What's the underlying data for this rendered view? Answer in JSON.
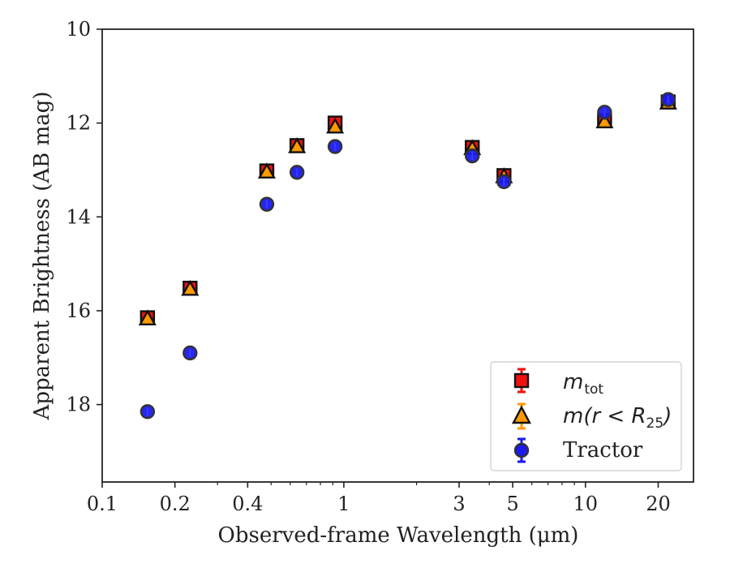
{
  "chart_data": {
    "type": "scatter",
    "xlabel": "Observed-frame Wavelength (μm)",
    "ylabel": "Apparent Brightness (AB mag)",
    "x_scale": "log",
    "xlim": [
      0.1,
      28
    ],
    "ylim": [
      19.65,
      10
    ],
    "y_inverted": true,
    "x_ticks": [
      {
        "value": 0.1,
        "label": "0.1"
      },
      {
        "value": 0.2,
        "label": "0.2"
      },
      {
        "value": 0.4,
        "label": "0.4"
      },
      {
        "value": 1,
        "label": "1"
      },
      {
        "value": 3,
        "label": "3"
      },
      {
        "value": 5,
        "label": "5"
      },
      {
        "value": 10,
        "label": "10"
      },
      {
        "value": 20,
        "label": "20"
      }
    ],
    "x_minor_ticks": [
      0.3,
      0.5,
      0.6,
      0.7,
      0.8,
      0.9,
      2,
      4,
      6,
      7,
      8,
      9
    ],
    "y_ticks": [
      {
        "value": 10,
        "label": "10"
      },
      {
        "value": 12,
        "label": "12"
      },
      {
        "value": 14,
        "label": "14"
      },
      {
        "value": 16,
        "label": "16"
      },
      {
        "value": 18,
        "label": "18"
      }
    ],
    "grid": false,
    "legend_position": "bottom-right",
    "series": [
      {
        "name": "m_tot",
        "marker": "square",
        "color": "#ee1111",
        "edge_color": "#111111",
        "x": [
          0.154,
          0.231,
          0.48,
          0.64,
          0.92,
          3.4,
          4.6,
          12.0,
          22.0
        ],
        "y": [
          16.15,
          15.52,
          13.02,
          12.48,
          12.0,
          12.52,
          13.12,
          11.95,
          11.55
        ]
      },
      {
        "name": "m(r < R25)",
        "marker": "triangle",
        "color": "#ff9900",
        "edge_color": "#111111",
        "x": [
          0.154,
          0.231,
          0.48,
          0.64,
          0.92,
          3.4,
          4.6,
          12.0,
          22.0
        ],
        "y": [
          16.17,
          15.54,
          13.04,
          12.5,
          12.08,
          12.54,
          13.14,
          11.97,
          11.57
        ]
      },
      {
        "name": "Tractor",
        "marker": "circle",
        "color": "#1a1aee",
        "edge_color": "#333333",
        "x": [
          0.154,
          0.231,
          0.48,
          0.64,
          0.92,
          3.4,
          4.6,
          12.0,
          22.0
        ],
        "y": [
          18.15,
          16.9,
          13.73,
          13.05,
          12.5,
          12.7,
          13.25,
          11.77,
          11.5
        ]
      }
    ]
  },
  "legend": {
    "mtot_main": "m",
    "mtot_sub": "tot",
    "mr_prefix": "m(r < R",
    "mr_sub": "25",
    "mr_suffix": ")",
    "tractor": "Tractor"
  }
}
